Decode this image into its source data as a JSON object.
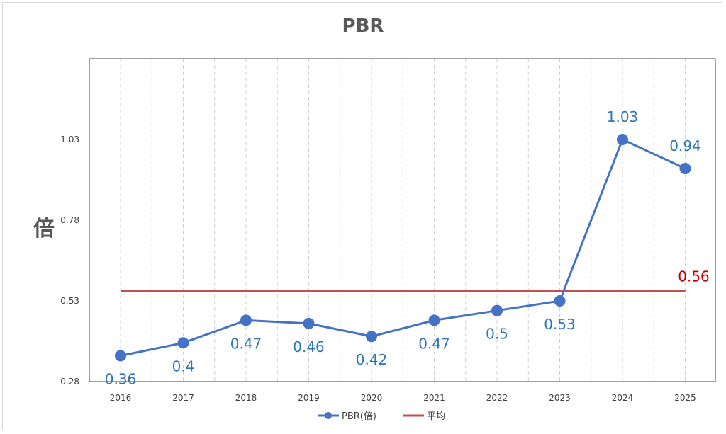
{
  "chart_data": {
    "type": "line",
    "title": "PBR",
    "ylabel": "倍",
    "xlabel": "",
    "categories": [
      "2016",
      "2017",
      "2018",
      "2019",
      "2020",
      "2021",
      "2022",
      "2023",
      "2024",
      "2025"
    ],
    "ylim": [
      0.28,
      1.28
    ],
    "yticks": [
      "0.28",
      "0.53",
      "0.78",
      "1.03"
    ],
    "ytick_values": [
      0.28,
      0.53,
      0.78,
      1.03
    ],
    "grid": "vertical-dashed",
    "legend_position": "bottom",
    "series": [
      {
        "name": "PBR(倍)",
        "color": "#4472C4",
        "values": [
          0.36,
          0.4,
          0.47,
          0.46,
          0.42,
          0.47,
          0.5,
          0.53,
          1.03,
          0.94
        ],
        "labels": [
          "0.36",
          "0.4",
          "0.47",
          "0.46",
          "0.42",
          "0.47",
          "0.5",
          "0.53",
          "1.03",
          "0.94"
        ]
      },
      {
        "name": "平均",
        "color": "#C0504D",
        "values": [
          0.56,
          0.56,
          0.56,
          0.56,
          0.56,
          0.56,
          0.56,
          0.56,
          0.56,
          0.56
        ],
        "label": "0.56"
      }
    ]
  }
}
